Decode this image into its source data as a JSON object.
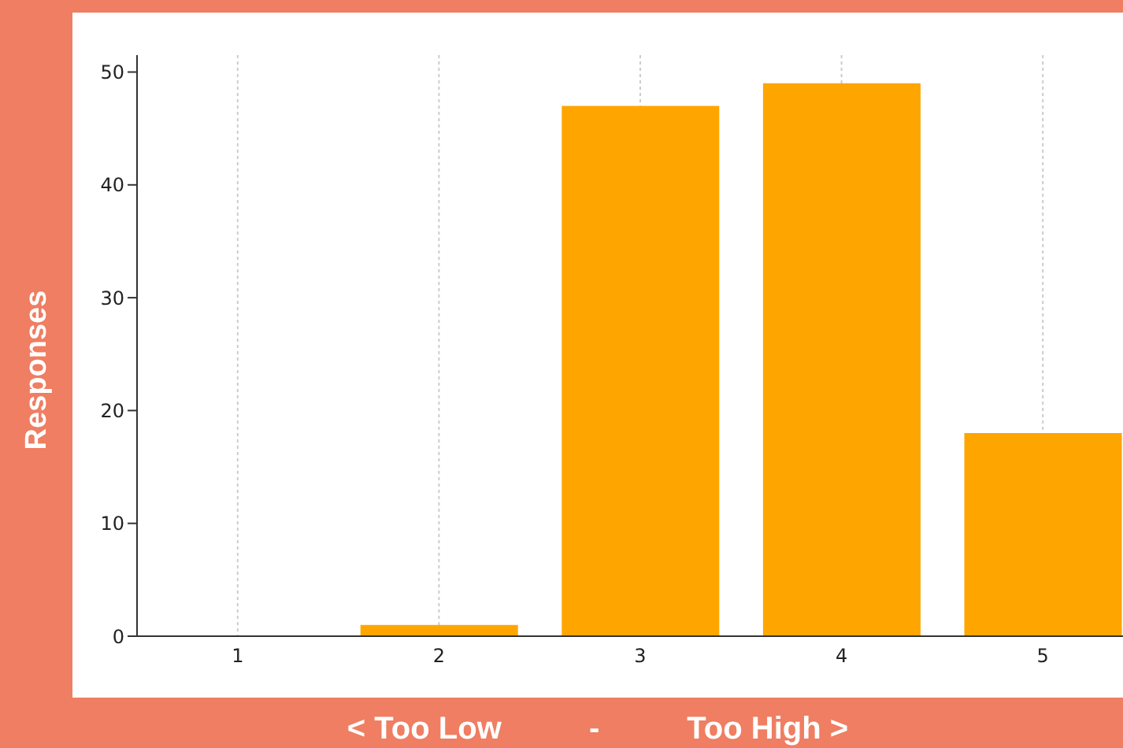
{
  "chart_data": {
    "type": "bar",
    "xlabel": "< Too Low          -          Too High >",
    "ylabel": "Responses",
    "categories": [
      "1",
      "2",
      "3",
      "4",
      "5"
    ],
    "values": [
      0,
      1,
      47,
      49,
      18
    ],
    "color": "#ffa500",
    "ylim": [
      0,
      51.5
    ],
    "yticks": [
      0,
      10,
      20,
      30,
      40,
      50
    ],
    "grid": "x"
  }
}
